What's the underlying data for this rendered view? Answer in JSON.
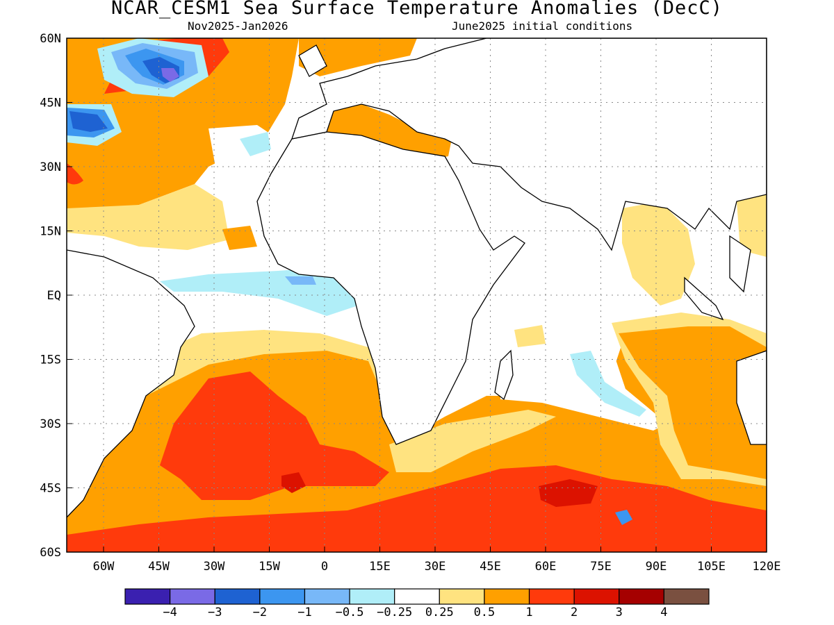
{
  "header": {
    "title": "NCAR_CESM1 Sea Surface Temperature Anomalies (DecC)",
    "period": "Nov2025-Jan2026",
    "init": "June2025 initial conditions"
  },
  "chart_data": {
    "type": "heatmap",
    "title": "NCAR_CESM1 Sea Surface Temperature Anomalies (DecC)",
    "lon_range": [
      -70,
      120
    ],
    "lat_range": [
      -60,
      60
    ],
    "x_ticks": [
      "60W",
      "45W",
      "30W",
      "15W",
      "0",
      "15E",
      "30E",
      "45E",
      "60E",
      "75E",
      "90E",
      "105E",
      "120E"
    ],
    "y_ticks": [
      "60N",
      "45N",
      "30N",
      "15N",
      "EQ",
      "15S",
      "30S",
      "45S",
      "60S"
    ],
    "grid": true,
    "colorbar": {
      "levels": [
        "-4",
        "-3",
        "-2",
        "-1",
        "-0.5",
        "-0.25",
        "0.25",
        "0.5",
        "1",
        "2",
        "3",
        "4"
      ],
      "colors": [
        "#3a20b0",
        "#7a6ae6",
        "#1e62d2",
        "#3c96f0",
        "#78b8f8",
        "#b0eef8",
        "#ffffff",
        "#ffe380",
        "#ffa000",
        "#ff3a0c",
        "#dc1200",
        "#a50000",
        "#7a5040"
      ]
    },
    "regions": [
      {
        "name": "North Atlantic subtropics",
        "anomaly_class": "0.5 to 1"
      },
      {
        "name": "Labrador Sea / Newfoundland",
        "anomaly_class": "-3 to -2"
      },
      {
        "name": "Tropical Atlantic (Gulf of Guinea)",
        "anomaly_class": "-0.5 to -0.25"
      },
      {
        "name": "Mediterranean Sea",
        "anomaly_class": "0.5 to 1"
      },
      {
        "name": "South Atlantic",
        "anomaly_class": "1 to 2"
      },
      {
        "name": "Southern Ocean 40S-60S",
        "anomaly_class": "1 to 3"
      },
      {
        "name": "Southeast Indian Ocean",
        "anomaly_class": "0.5 to 2"
      },
      {
        "name": "Bay of Bengal / Arabian Sea",
        "anomaly_class": "0.25 to 0.5"
      }
    ]
  }
}
